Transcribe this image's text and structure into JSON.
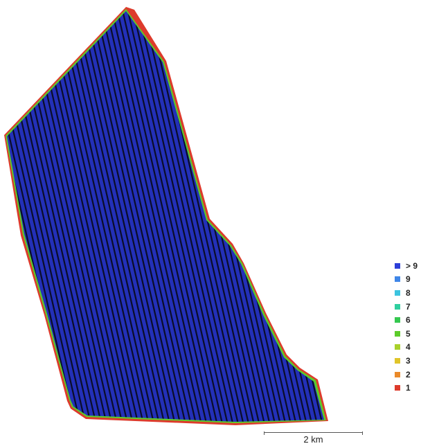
{
  "legend": {
    "items": [
      {
        "label": "> 9",
        "color": "#2d3fd8"
      },
      {
        "label": "9",
        "color": "#3f86e8"
      },
      {
        "label": "8",
        "color": "#3cc4df"
      },
      {
        "label": "7",
        "color": "#2fcf9f"
      },
      {
        "label": "6",
        "color": "#35c84f"
      },
      {
        "label": "5",
        "color": "#5ccc2a"
      },
      {
        "label": "4",
        "color": "#a9d12b"
      },
      {
        "label": "3",
        "color": "#e0c52a"
      },
      {
        "label": "2",
        "color": "#ea8a2a"
      },
      {
        "label": "1",
        "color": "#dd3b2c"
      }
    ]
  },
  "scale_bar": {
    "label": "2 km"
  },
  "map": {
    "fill_color": "#2330b8",
    "line_color": "#0a0d2a",
    "edge_colors": [
      "#2fcf9f",
      "#35c84f",
      "#5ccc2a",
      "#e0c52a",
      "#ea8a2a",
      "#dd3b2c"
    ]
  }
}
